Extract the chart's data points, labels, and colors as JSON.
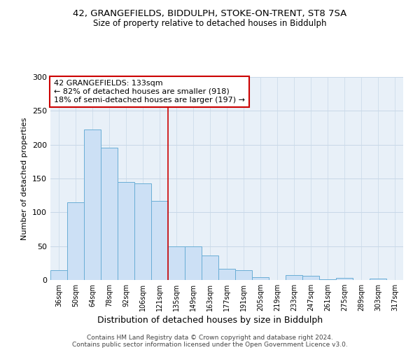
{
  "title1": "42, GRANGEFIELDS, BIDDULPH, STOKE-ON-TRENT, ST8 7SA",
  "title2": "Size of property relative to detached houses in Biddulph",
  "xlabel": "Distribution of detached houses by size in Biddulph",
  "ylabel": "Number of detached properties",
  "categories": [
    "36sqm",
    "50sqm",
    "64sqm",
    "78sqm",
    "92sqm",
    "106sqm",
    "121sqm",
    "135sqm",
    "149sqm",
    "163sqm",
    "177sqm",
    "191sqm",
    "205sqm",
    "219sqm",
    "233sqm",
    "247sqm",
    "261sqm",
    "275sqm",
    "289sqm",
    "303sqm",
    "317sqm"
  ],
  "values": [
    15,
    115,
    222,
    196,
    145,
    143,
    117,
    50,
    50,
    36,
    17,
    15,
    4,
    0,
    7,
    6,
    1,
    3,
    0,
    2,
    0
  ],
  "bar_color": "#cce0f5",
  "bar_edge_color": "#6aaed6",
  "subject_line_index": 7,
  "subject_label": "42 GRANGEFIELDS: 133sqm",
  "annotation_line1": "← 82% of detached houses are smaller (918)",
  "annotation_line2": "18% of semi-detached houses are larger (197) →",
  "annotation_box_color": "#ffffff",
  "annotation_box_edge_color": "#cc0000",
  "vline_color": "#cc0000",
  "grid_color": "#c8d8e8",
  "background_color": "#e8f0f8",
  "footer1": "Contains HM Land Registry data © Crown copyright and database right 2024.",
  "footer2": "Contains public sector information licensed under the Open Government Licence v3.0.",
  "ylim": [
    0,
    300
  ],
  "yticks": [
    0,
    50,
    100,
    150,
    200,
    250,
    300
  ]
}
